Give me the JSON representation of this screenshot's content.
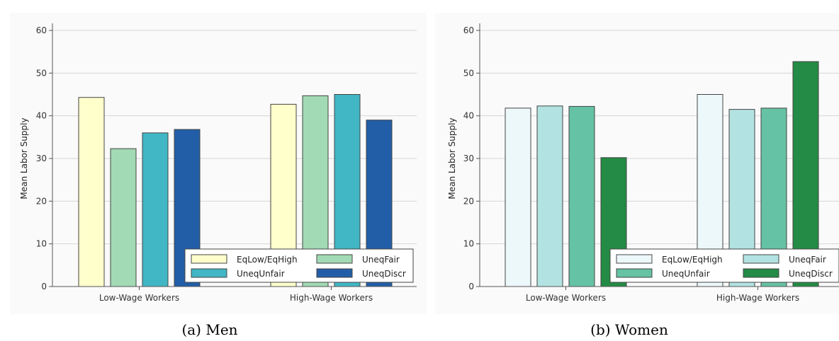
{
  "chart_data": [
    {
      "type": "bar",
      "caption": "(a) Men",
      "ylabel": "Mean Labor Supply",
      "ylim": [
        0,
        60
      ],
      "yticks": [
        0,
        10,
        20,
        30,
        40,
        50,
        60
      ],
      "grid": true,
      "legend_position": "bottom-right",
      "categories": [
        "Low-Wage Workers",
        "High-Wage Workers"
      ],
      "series": [
        {
          "name": "EqLow/EqHigh",
          "color": "#ffffcc",
          "values": [
            44.3,
            42.7
          ]
        },
        {
          "name": "UneqFair",
          "color": "#a1dab4",
          "values": [
            32.3,
            44.7
          ]
        },
        {
          "name": "UneqUnfair",
          "color": "#41b6c4",
          "values": [
            36.0,
            45.0
          ]
        },
        {
          "name": "UneqDiscr",
          "color": "#225ea8",
          "values": [
            36.8,
            39.0
          ]
        }
      ]
    },
    {
      "type": "bar",
      "caption": "(b) Women",
      "ylabel": "Mean Labor Supply",
      "ylim": [
        0,
        60
      ],
      "yticks": [
        0,
        10,
        20,
        30,
        40,
        50,
        60
      ],
      "grid": true,
      "legend_position": "bottom-right",
      "categories": [
        "Low-Wage Workers",
        "High-Wage Workers"
      ],
      "series": [
        {
          "name": "EqLow/EqHigh",
          "color": "#edf8fb",
          "values": [
            41.8,
            45.0
          ]
        },
        {
          "name": "UneqFair",
          "color": "#b2e2e2",
          "values": [
            42.3,
            41.5
          ]
        },
        {
          "name": "UneqUnfair",
          "color": "#66c2a4",
          "values": [
            42.2,
            41.8
          ]
        },
        {
          "name": "UneqDiscr",
          "color": "#238b45",
          "values": [
            30.2,
            52.7
          ]
        }
      ]
    }
  ]
}
